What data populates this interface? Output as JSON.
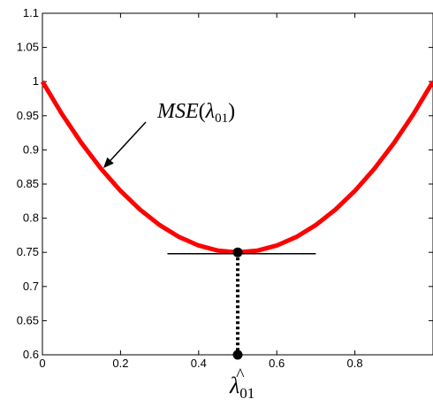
{
  "chart_data": {
    "type": "line",
    "title": "",
    "xlabel": "",
    "ylabel": "",
    "xlim": [
      0,
      1
    ],
    "ylim": [
      0.6,
      1.1
    ],
    "grid": false,
    "x_ticks": [
      0,
      0.2,
      0.4,
      0.6,
      0.8
    ],
    "x_tick_labels": [
      "0",
      "0.2",
      "0.4",
      "0.6",
      "0.8"
    ],
    "y_ticks": [
      0.6,
      0.65,
      0.7,
      0.75,
      0.8,
      0.85,
      0.9,
      0.95,
      1,
      1.05,
      1.1
    ],
    "y_tick_labels": [
      "0.6",
      "0.65",
      "0.7",
      "0.75",
      "0.8",
      "0.85",
      "0.9",
      "0.95",
      "1",
      "1.05",
      "1.1"
    ],
    "series": [
      {
        "color": "#ff0000",
        "x": [
          0,
          0.05,
          0.1,
          0.15,
          0.2,
          0.25,
          0.3,
          0.35,
          0.4,
          0.45,
          0.5,
          0.55,
          0.6,
          0.65,
          0.7,
          0.75,
          0.8,
          0.85,
          0.9,
          0.95,
          1.0
        ],
        "y": [
          1.0,
          0.9525,
          0.91,
          0.8725,
          0.84,
          0.8125,
          0.79,
          0.7725,
          0.76,
          0.7525,
          0.75,
          0.7525,
          0.76,
          0.7725,
          0.79,
          0.8125,
          0.84,
          0.8725,
          0.91,
          0.9525,
          1.0
        ]
      }
    ],
    "minimum": {
      "x": 0.5,
      "y": 0.75
    },
    "tangent_line": {
      "x_start": 0.32,
      "x_end": 0.7,
      "y": 0.748
    },
    "marker_bottom": {
      "x": 0.5,
      "y": 0.6
    },
    "annotations": {
      "curve_label_main": "MSE",
      "curve_label_paren_open": "(",
      "curve_label_lambda": "λ",
      "curve_label_sub": "01",
      "curve_label_paren_close": ")",
      "curve_label_arrow_tip": {
        "x": 0.15,
        "y": 0.87
      },
      "estimate_symbol": "λ",
      "estimate_hat": "^",
      "estimate_sub": "01"
    }
  }
}
